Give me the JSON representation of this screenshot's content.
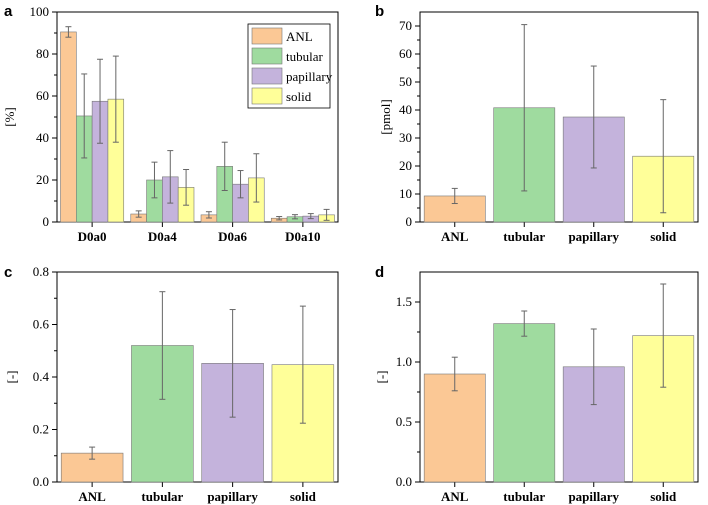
{
  "colors": {
    "ANL": "#fbc895",
    "tubular": "#9fdb9f",
    "papillary": "#c4b3dc",
    "solid": "#ffff99"
  },
  "chart_data": [
    {
      "type": "bar",
      "panel": "a",
      "title": "",
      "ylabel": "[%]",
      "xlabel": "",
      "ylim": [
        0,
        100
      ],
      "yticks": [
        0,
        20,
        40,
        60,
        80,
        100
      ],
      "categories": [
        "D0a0",
        "D0a4",
        "D0a6",
        "D0a10"
      ],
      "legend": [
        "ANL",
        "tubular",
        "papillary",
        "solid"
      ],
      "legend_position": "top-right",
      "series": [
        {
          "name": "ANL",
          "values": [
            90.5,
            3.8,
            3.4,
            1.8
          ],
          "errors": [
            2.5,
            1.5,
            1.5,
            0.8
          ]
        },
        {
          "name": "tubular",
          "values": [
            50.5,
            20.0,
            26.5,
            2.5
          ],
          "errors": [
            20,
            8.5,
            11.5,
            1.0
          ]
        },
        {
          "name": "papillary",
          "values": [
            57.5,
            21.5,
            18.0,
            2.8
          ],
          "errors": [
            20,
            12.5,
            6.5,
            1.2
          ]
        },
        {
          "name": "solid",
          "values": [
            58.5,
            16.5,
            21.0,
            3.4
          ],
          "errors": [
            20.5,
            8.5,
            11.5,
            2.6
          ]
        }
      ]
    },
    {
      "type": "bar",
      "panel": "b",
      "title": "",
      "ylabel": "[pmol]",
      "xlabel": "",
      "ylim": [
        0,
        75
      ],
      "yticks": [
        0,
        10,
        20,
        30,
        40,
        50,
        60,
        70
      ],
      "categories": [
        "ANL",
        "tubular",
        "papillary",
        "solid"
      ],
      "values": [
        9.3,
        40.8,
        37.5,
        23.5
      ],
      "errors": [
        2.7,
        29.7,
        18.2,
        20.2
      ]
    },
    {
      "type": "bar",
      "panel": "c",
      "title": "",
      "ylabel": "[-]",
      "xlabel": "",
      "ylim": [
        0,
        0.8
      ],
      "yticks": [
        0.0,
        0.2,
        0.4,
        0.6,
        0.8
      ],
      "categories": [
        "ANL",
        "tubular",
        "papillary",
        "solid"
      ],
      "values": [
        0.11,
        0.52,
        0.452,
        0.447
      ],
      "errors": [
        0.023,
        0.205,
        0.205,
        0.223
      ]
    },
    {
      "type": "bar",
      "panel": "d",
      "title": "",
      "ylabel": "[-]",
      "xlabel": "",
      "ylim": [
        0,
        1.75
      ],
      "yticks": [
        0.0,
        0.5,
        1.0,
        1.5
      ],
      "categories": [
        "ANL",
        "tubular",
        "papillary",
        "solid"
      ],
      "values": [
        0.9,
        1.32,
        0.96,
        1.22
      ],
      "errors": [
        0.14,
        0.105,
        0.315,
        0.43
      ]
    }
  ]
}
